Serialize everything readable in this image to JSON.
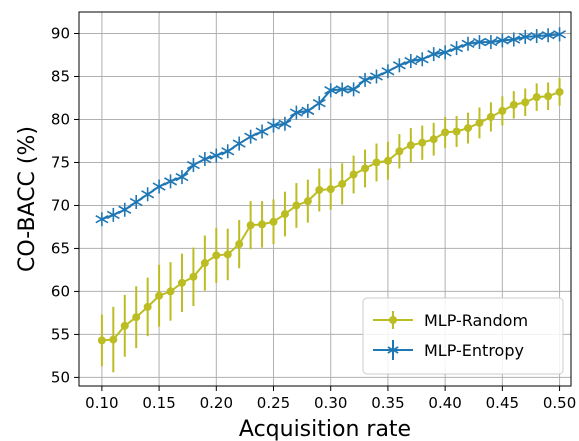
{
  "chart_data": {
    "type": "line",
    "xlabel": "Acquisition rate",
    "ylabel": "CO-BACC (%)",
    "xlim": [
      0.08,
      0.51
    ],
    "ylim": [
      49,
      92.5
    ],
    "x_ticks": [
      "0.10",
      "0.15",
      "0.20",
      "0.25",
      "0.30",
      "0.35",
      "0.40",
      "0.45",
      "0.50"
    ],
    "y_ticks": [
      "50",
      "55",
      "60",
      "65",
      "70",
      "75",
      "80",
      "85",
      "90"
    ],
    "grid": true,
    "legend_position": "lower-right",
    "x": [
      0.1,
      0.11,
      0.12,
      0.13,
      0.14,
      0.15,
      0.16,
      0.17,
      0.18,
      0.19,
      0.2,
      0.21,
      0.22,
      0.23,
      0.24,
      0.25,
      0.26,
      0.27,
      0.28,
      0.29,
      0.3,
      0.31,
      0.32,
      0.33,
      0.34,
      0.35,
      0.36,
      0.37,
      0.38,
      0.39,
      0.4,
      0.41,
      0.42,
      0.43,
      0.44,
      0.45,
      0.46,
      0.47,
      0.48,
      0.49,
      0.5
    ],
    "series": [
      {
        "name": "MLP-Random",
        "color": "#bcbd22",
        "marker": "circle",
        "values": [
          54.3,
          54.4,
          56.0,
          57.0,
          58.2,
          59.5,
          60.0,
          61.0,
          61.7,
          63.3,
          64.2,
          64.3,
          65.5,
          67.7,
          67.8,
          68.1,
          69.0,
          70.0,
          70.5,
          71.8,
          71.9,
          72.5,
          73.6,
          74.3,
          75.0,
          75.2,
          76.3,
          77.0,
          77.3,
          77.7,
          78.5,
          78.6,
          79.0,
          79.6,
          80.3,
          81.0,
          81.7,
          82.0,
          82.6,
          82.7,
          83.2
        ],
        "errors": [
          3.0,
          3.8,
          3.6,
          3.6,
          3.4,
          3.6,
          3.4,
          3.4,
          3.4,
          3.2,
          3.2,
          3.0,
          2.8,
          2.8,
          2.7,
          2.6,
          2.6,
          2.6,
          2.5,
          2.5,
          2.4,
          2.4,
          2.2,
          2.2,
          2.2,
          2.2,
          2.0,
          2.0,
          2.0,
          1.9,
          1.8,
          1.8,
          1.8,
          1.8,
          1.7,
          1.7,
          1.6,
          1.6,
          1.6,
          1.6,
          1.6
        ]
      },
      {
        "name": "MLP-Entropy",
        "color": "#1f77b4",
        "marker": "star",
        "values": [
          68.4,
          68.9,
          69.5,
          70.4,
          71.3,
          72.2,
          72.8,
          73.3,
          74.7,
          75.4,
          75.8,
          76.3,
          77.2,
          78.0,
          78.6,
          79.3,
          79.5,
          80.8,
          81.0,
          81.9,
          83.4,
          83.5,
          83.5,
          84.6,
          85.0,
          85.6,
          86.3,
          86.8,
          87.0,
          87.6,
          87.8,
          88.3,
          88.8,
          89.0,
          89.0,
          89.2,
          89.3,
          89.6,
          89.7,
          89.8,
          89.9
        ]
      }
    ]
  }
}
